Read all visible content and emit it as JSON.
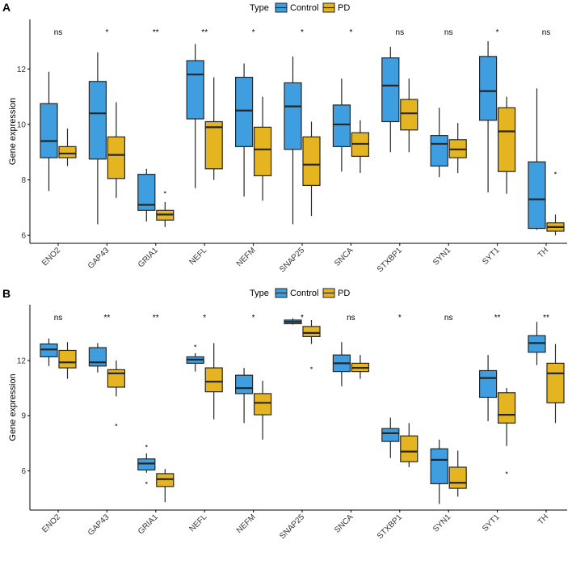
{
  "legend": {
    "title": "Type",
    "entries": [
      "Control",
      "PD"
    ]
  },
  "colors": {
    "control": "#3e9ee0",
    "pd": "#e4b520",
    "stroke": "#262626",
    "axis": "#000000",
    "text": "#333333"
  },
  "chart_data": [
    {
      "panel": "A",
      "type": "box",
      "ylabel": "Gene expression",
      "xlabel": "",
      "ylim": [
        5.8,
        13.7
      ],
      "yticks": [
        6,
        8,
        10,
        12
      ],
      "legend": [
        "Control",
        "PD"
      ],
      "legend_position": "top",
      "categories": [
        "ENO2",
        "GAP43",
        "GRIA1",
        "NEFL",
        "NEFM",
        "SNAP25",
        "SNCA",
        "STXBP1",
        "SYN1",
        "SYT1",
        "TH"
      ],
      "significance": [
        "ns",
        "*",
        "**",
        "**",
        "*",
        "*",
        "*",
        "ns",
        "ns",
        "*",
        "ns"
      ],
      "series": [
        {
          "name": "Control",
          "boxes": [
            {
              "min": 7.6,
              "q1": 8.8,
              "median": 9.4,
              "q3": 10.75,
              "max": 11.9,
              "outliers": []
            },
            {
              "min": 6.4,
              "q1": 8.75,
              "median": 10.4,
              "q3": 11.55,
              "max": 12.6,
              "outliers": []
            },
            {
              "min": 6.5,
              "q1": 6.9,
              "median": 7.1,
              "q3": 8.2,
              "max": 8.4,
              "outliers": []
            },
            {
              "min": 7.7,
              "q1": 10.2,
              "median": 11.8,
              "q3": 12.3,
              "max": 12.9,
              "outliers": []
            },
            {
              "min": 7.4,
              "q1": 9.2,
              "median": 10.5,
              "q3": 11.7,
              "max": 12.2,
              "outliers": []
            },
            {
              "min": 6.4,
              "q1": 9.1,
              "median": 10.65,
              "q3": 11.5,
              "max": 12.45,
              "outliers": []
            },
            {
              "min": 8.3,
              "q1": 9.2,
              "median": 10.0,
              "q3": 10.7,
              "max": 11.65,
              "outliers": []
            },
            {
              "min": 9.0,
              "q1": 10.1,
              "median": 11.4,
              "q3": 12.4,
              "max": 12.8,
              "outliers": []
            },
            {
              "min": 8.1,
              "q1": 8.5,
              "median": 9.3,
              "q3": 9.6,
              "max": 10.6,
              "outliers": []
            },
            {
              "min": 7.55,
              "q1": 10.15,
              "median": 11.2,
              "q3": 12.45,
              "max": 13.0,
              "outliers": []
            },
            {
              "min": 6.2,
              "q1": 6.25,
              "median": 7.3,
              "q3": 8.65,
              "max": 11.3,
              "outliers": []
            }
          ]
        },
        {
          "name": "PD",
          "boxes": [
            {
              "min": 8.5,
              "q1": 8.8,
              "median": 8.95,
              "q3": 9.2,
              "max": 9.85,
              "outliers": []
            },
            {
              "min": 7.35,
              "q1": 8.05,
              "median": 8.9,
              "q3": 9.55,
              "max": 10.8,
              "outliers": []
            },
            {
              "min": 6.3,
              "q1": 6.55,
              "median": 6.75,
              "q3": 6.9,
              "max": 7.2,
              "outliers": [
                7.55
              ]
            },
            {
              "min": 8.0,
              "q1": 8.4,
              "median": 9.9,
              "q3": 10.1,
              "max": 11.7,
              "outliers": []
            },
            {
              "min": 7.25,
              "q1": 8.15,
              "median": 9.1,
              "q3": 9.9,
              "max": 11.0,
              "outliers": []
            },
            {
              "min": 6.7,
              "q1": 7.8,
              "median": 8.55,
              "q3": 9.55,
              "max": 10.1,
              "outliers": []
            },
            {
              "min": 8.25,
              "q1": 8.85,
              "median": 9.3,
              "q3": 9.7,
              "max": 10.15,
              "outliers": []
            },
            {
              "min": 9.0,
              "q1": 9.8,
              "median": 10.4,
              "q3": 10.9,
              "max": 11.65,
              "outliers": []
            },
            {
              "min": 8.25,
              "q1": 8.8,
              "median": 9.1,
              "q3": 9.45,
              "max": 10.05,
              "outliers": []
            },
            {
              "min": 7.5,
              "q1": 8.3,
              "median": 9.75,
              "q3": 10.6,
              "max": 11.0,
              "outliers": []
            },
            {
              "min": 6.0,
              "q1": 6.15,
              "median": 6.3,
              "q3": 6.45,
              "max": 6.75,
              "outliers": [
                8.25
              ]
            }
          ]
        }
      ]
    },
    {
      "panel": "B",
      "type": "box",
      "ylabel": "Gene expression",
      "xlabel": "",
      "ylim": [
        4.0,
        14.9
      ],
      "yticks": [
        6,
        9,
        12
      ],
      "legend": [
        "Control",
        "PD"
      ],
      "legend_position": "top",
      "categories": [
        "ENO2",
        "GAP43",
        "GRIA1",
        "NEFL",
        "NEFM",
        "SNAP25",
        "SNCA",
        "STXBP1",
        "SYN1",
        "SYT1",
        "TH"
      ],
      "significance": [
        "ns",
        "**",
        "**",
        "*",
        "*",
        "*",
        "ns",
        "*",
        "ns",
        "**",
        "**"
      ],
      "series": [
        {
          "name": "Control",
          "boxes": [
            {
              "min": 11.7,
              "q1": 12.2,
              "median": 12.6,
              "q3": 12.9,
              "max": 13.2,
              "outliers": []
            },
            {
              "min": 11.35,
              "q1": 11.7,
              "median": 11.9,
              "q3": 12.7,
              "max": 12.95,
              "outliers": []
            },
            {
              "min": 5.9,
              "q1": 6.05,
              "median": 6.4,
              "q3": 6.65,
              "max": 6.95,
              "outliers": [
                7.35,
                5.35
              ]
            },
            {
              "min": 11.4,
              "q1": 11.85,
              "median": 12.05,
              "q3": 12.2,
              "max": 12.4,
              "outliers": [
                12.8
              ]
            },
            {
              "min": 8.6,
              "q1": 10.2,
              "median": 10.5,
              "q3": 11.2,
              "max": 11.6,
              "outliers": []
            },
            {
              "min": 13.95,
              "q1": 14.0,
              "median": 14.1,
              "q3": 14.2,
              "max": 14.3,
              "outliers": []
            },
            {
              "min": 10.6,
              "q1": 11.4,
              "median": 11.85,
              "q3": 12.3,
              "max": 13.0,
              "outliers": []
            },
            {
              "min": 6.7,
              "q1": 7.6,
              "median": 8.05,
              "q3": 8.3,
              "max": 8.9,
              "outliers": []
            },
            {
              "min": 4.2,
              "q1": 5.3,
              "median": 6.6,
              "q3": 7.2,
              "max": 7.7,
              "outliers": []
            },
            {
              "min": 8.7,
              "q1": 10.0,
              "median": 11.05,
              "q3": 11.45,
              "max": 12.3,
              "outliers": []
            },
            {
              "min": 11.75,
              "q1": 12.45,
              "median": 12.95,
              "q3": 13.35,
              "max": 14.1,
              "outliers": []
            }
          ]
        },
        {
          "name": "PD",
          "boxes": [
            {
              "min": 11.0,
              "q1": 11.6,
              "median": 11.9,
              "q3": 12.55,
              "max": 13.0,
              "outliers": []
            },
            {
              "min": 10.05,
              "q1": 10.55,
              "median": 11.3,
              "q3": 11.5,
              "max": 12.0,
              "outliers": [
                8.5
              ]
            },
            {
              "min": 4.3,
              "q1": 5.15,
              "median": 5.55,
              "q3": 5.85,
              "max": 6.1,
              "outliers": []
            },
            {
              "min": 8.8,
              "q1": 10.3,
              "median": 10.85,
              "q3": 11.6,
              "max": 12.95,
              "outliers": []
            },
            {
              "min": 7.7,
              "q1": 9.05,
              "median": 9.7,
              "q3": 10.2,
              "max": 10.9,
              "outliers": []
            },
            {
              "min": 12.9,
              "q1": 13.3,
              "median": 13.5,
              "q3": 13.85,
              "max": 14.2,
              "outliers": [
                11.6
              ]
            },
            {
              "min": 11.0,
              "q1": 11.4,
              "median": 11.6,
              "q3": 11.85,
              "max": 12.3,
              "outliers": []
            },
            {
              "min": 6.2,
              "q1": 6.5,
              "median": 7.05,
              "q3": 7.9,
              "max": 8.6,
              "outliers": []
            },
            {
              "min": 4.6,
              "q1": 5.05,
              "median": 5.35,
              "q3": 6.2,
              "max": 7.1,
              "outliers": []
            },
            {
              "min": 7.35,
              "q1": 8.6,
              "median": 9.05,
              "q3": 10.25,
              "max": 10.5,
              "outliers": [
                5.9
              ]
            },
            {
              "min": 8.6,
              "q1": 9.7,
              "median": 11.3,
              "q3": 11.85,
              "max": 12.9,
              "outliers": []
            }
          ]
        }
      ]
    }
  ]
}
